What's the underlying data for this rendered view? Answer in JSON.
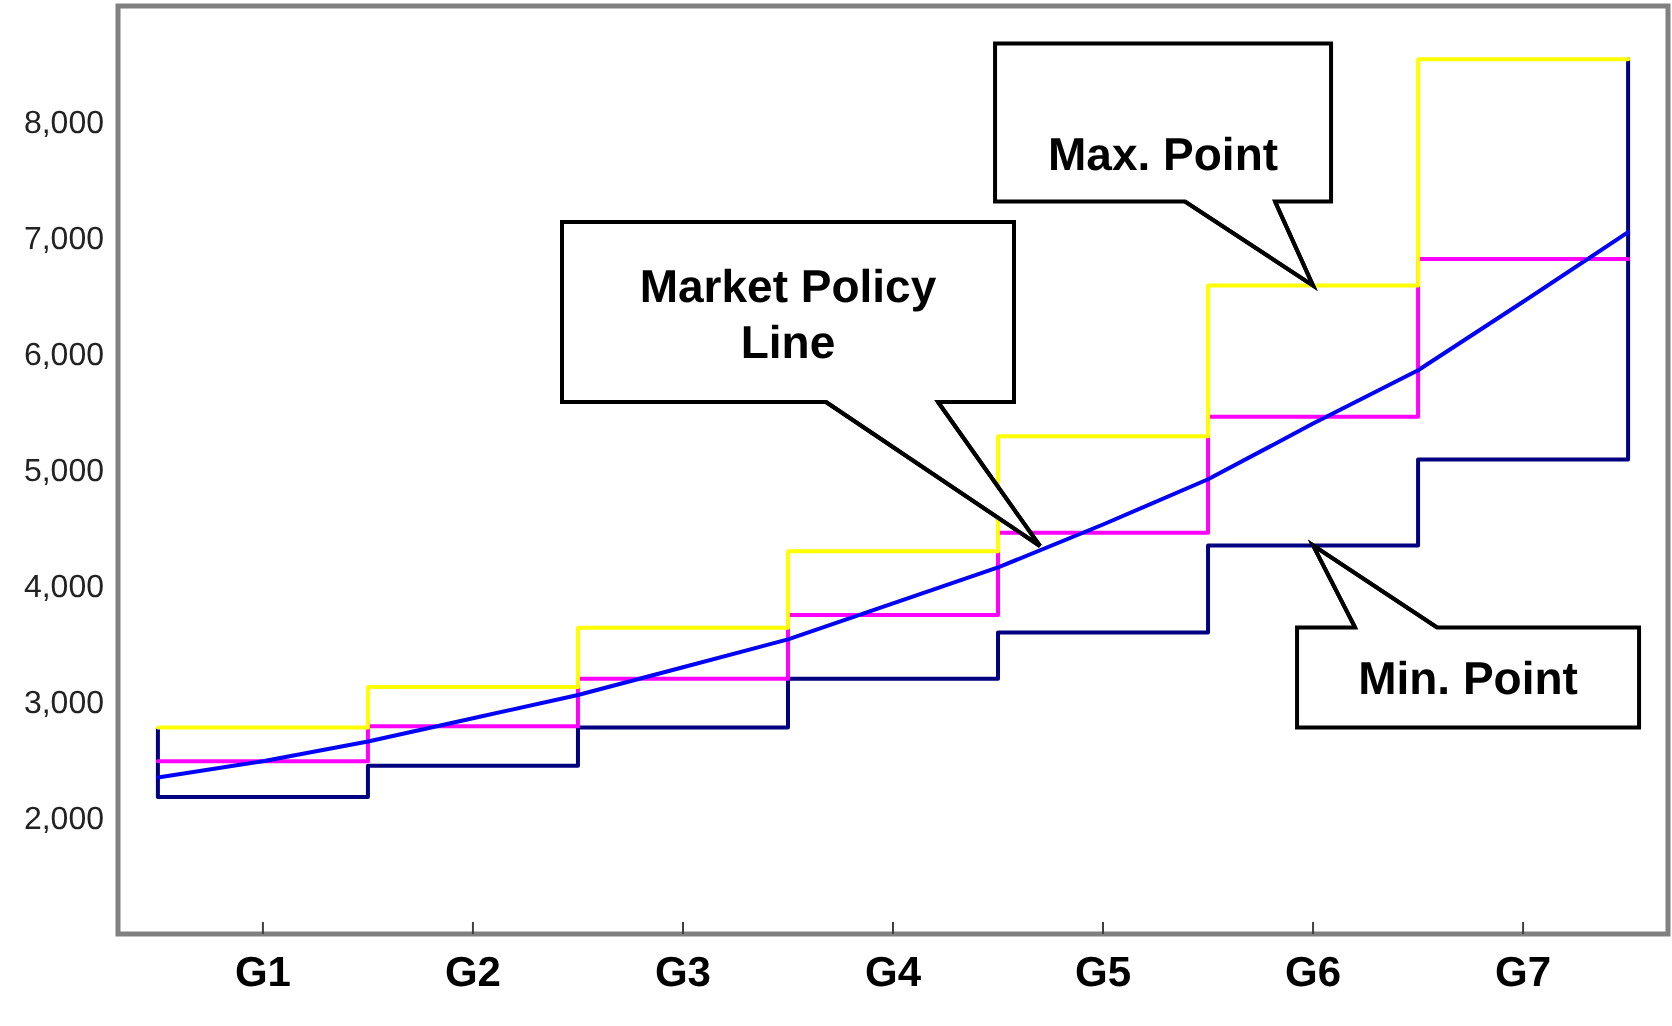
{
  "chart_data": {
    "type": "step",
    "categories": [
      null,
      "G1",
      null,
      "G2",
      null,
      "G3",
      null,
      "G4",
      null,
      "G5",
      null,
      "G6",
      null,
      "G7",
      null
    ],
    "ylim": [
      1000,
      9000
    ],
    "yticks": [
      {
        "value": 2000,
        "label": "2,000"
      },
      {
        "value": 3000,
        "label": "3,000"
      },
      {
        "value": 4000,
        "label": "4,000"
      },
      {
        "value": 5000,
        "label": "5,000"
      },
      {
        "value": 6000,
        "label": "6,000"
      },
      {
        "value": 7000,
        "label": "7,000"
      },
      {
        "value": 8000,
        "label": "8,000"
      }
    ],
    "series": [
      {
        "color": "#000080",
        "values": [
          2180,
          2180,
          2450,
          2450,
          2780,
          2780,
          3200,
          3200,
          3600,
          3600,
          4350,
          4350,
          5090,
          5090,
          8540
        ]
      },
      {
        "color": "#ff00ff",
        "values": [
          2490,
          2490,
          2790,
          2790,
          3200,
          3200,
          3750,
          3750,
          4460,
          4460,
          5460,
          5460,
          6820,
          6820,
          6820
        ]
      },
      {
        "color": "#ffff00",
        "values": [
          2780,
          2780,
          3130,
          3130,
          3640,
          3640,
          4300,
          4300,
          5290,
          5290,
          6590,
          6590,
          8540,
          8540,
          8540
        ]
      },
      {
        "type": "line",
        "color": "#0000ff",
        "values": [
          2350,
          2490,
          2660,
          2860,
          3060,
          3300,
          3540,
          3850,
          4160,
          4530,
          4920,
          5400,
          5860,
          6450,
          7050
        ]
      }
    ],
    "annotations": [
      "Market Policy Line",
      {
        "text": "Max. Point",
        "x": "G6",
        "y": 6590
      },
      {
        "text": "Min. Point",
        "x": "G6",
        "y": 4350
      }
    ]
  }
}
